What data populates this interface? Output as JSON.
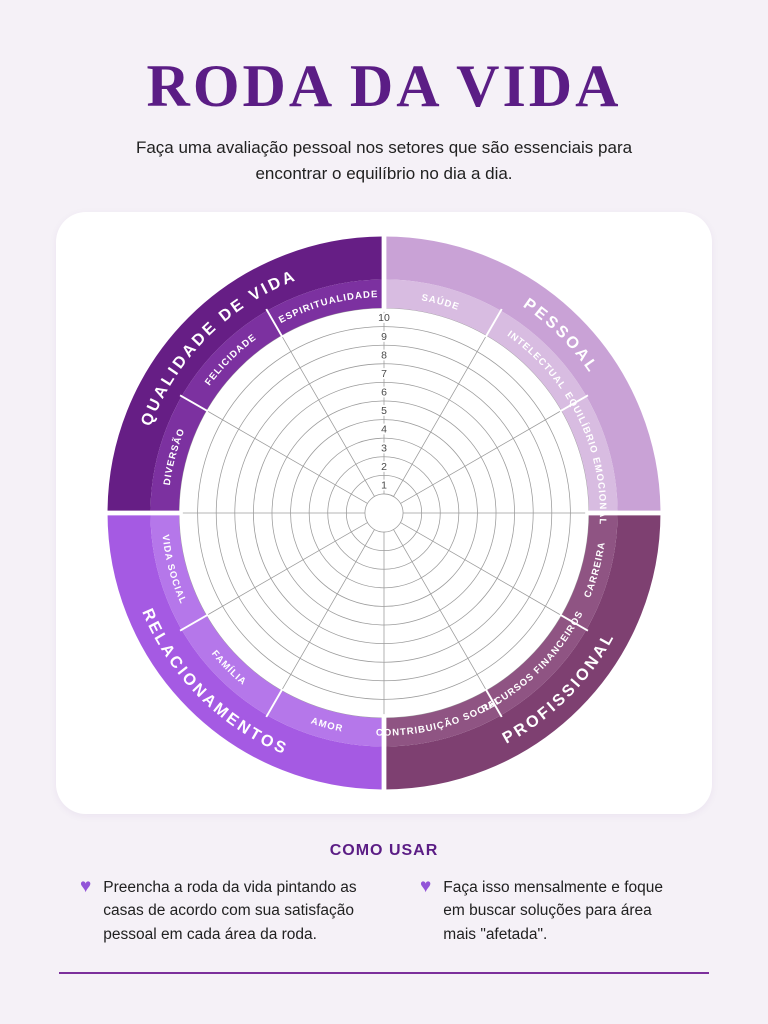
{
  "header": {
    "title": "RODA DA VIDA",
    "subtitle": "Faça uma avaliação pessoal nos setores que são essenciais para encontrar o equilíbrio no dia a dia."
  },
  "wheel": {
    "rings": 10,
    "scale_labels": [
      "1",
      "2",
      "3",
      "4",
      "5",
      "6",
      "7",
      "8",
      "9",
      "10"
    ],
    "quadrants": [
      {
        "label": "QUALIDADE DE VIDA",
        "band_color": "#661e85",
        "segment_band_color": "#7c31a0",
        "segments": [
          "DIVERSÃO",
          "FELICIDADE",
          "ESPIRITUALIDADE"
        ]
      },
      {
        "label": "PESSOAL",
        "band_color": "#c9a2d6",
        "segment_band_color": "#d8bce1",
        "segments": [
          "SAÚDE",
          "INTELECTUAL",
          "EQUILÍBRIO EMOCIONAL"
        ]
      },
      {
        "label": "PROFISSIONAL",
        "band_color": "#7e4071",
        "segment_band_color": "#8f5483",
        "segments": [
          "CARREIRA",
          "RECURSOS FINANCEIROS",
          "CONTRIBUIÇÃO SOCIAL"
        ]
      },
      {
        "label": "RELACIONAMENTOS",
        "band_color": "#a55ae3",
        "segment_band_color": "#b577ea",
        "segments": [
          "AMOR",
          "FAMÍLIA",
          "VIDA SOCIAL"
        ]
      }
    ]
  },
  "how_to_use": {
    "title": "COMO USAR",
    "items": [
      {
        "text": "Preencha a roda da vida pintando as casas de acordo com sua satisfação pessoal em cada área da roda."
      },
      {
        "text": "Faça isso mensalmente e foque em buscar soluções para área mais \"afetada\"."
      }
    ]
  },
  "icons": {
    "heart": "♥"
  },
  "colors": {
    "page_bg": "#f5f1f7",
    "card_bg": "#ffffff",
    "accent": "#5b1d85",
    "text": "#212121",
    "heart": "#9254d8",
    "divider": "#7c2f9c",
    "grid": "#9b9b9b",
    "scale_text": "#4a4a4a",
    "label_text": "#ffffff"
  }
}
